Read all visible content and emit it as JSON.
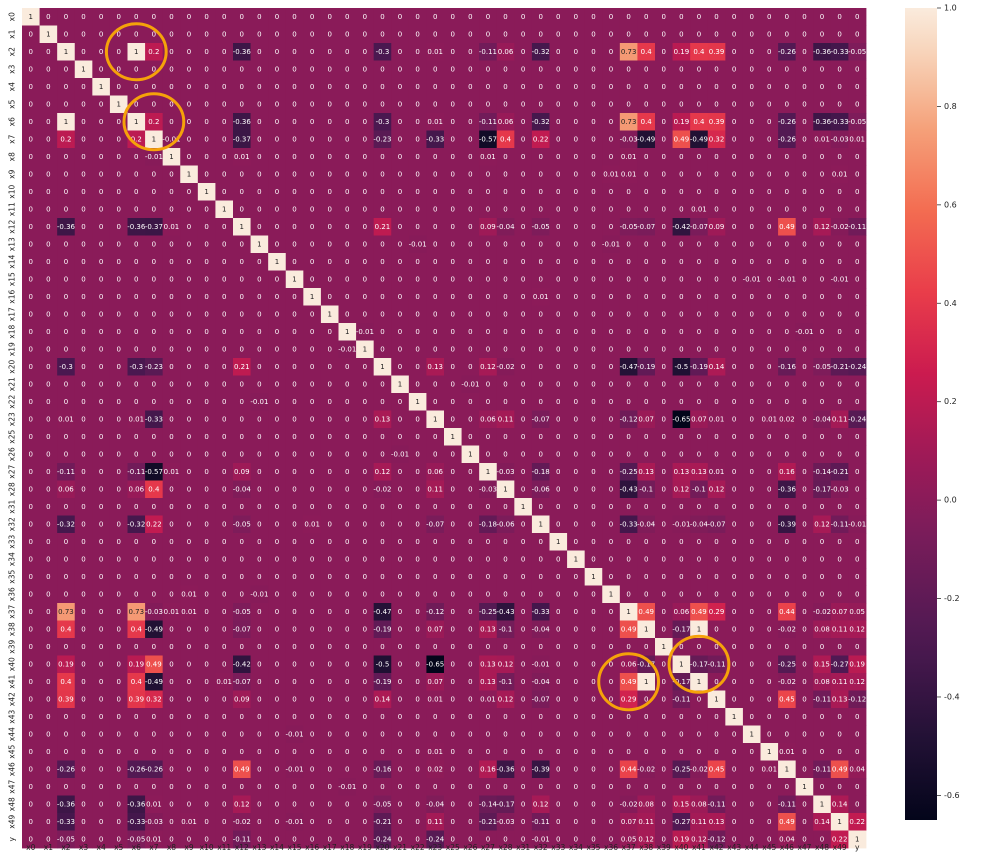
{
  "chart_data": {
    "type": "heatmap",
    "labels": [
      "x0",
      "x1",
      "x2",
      "x3",
      "x4",
      "x5",
      "x6",
      "x7",
      "x8",
      "x9",
      "x10",
      "x11",
      "x12",
      "x13",
      "x14",
      "x15",
      "x16",
      "x17",
      "x18",
      "x19",
      "x20",
      "x21",
      "x22",
      "x23",
      "x25",
      "x26",
      "x27",
      "x28",
      "x31",
      "x32",
      "x33",
      "x34",
      "x35",
      "x36",
      "x37",
      "x38",
      "x39",
      "x40",
      "x41",
      "x42",
      "x43",
      "x44",
      "x45",
      "x46",
      "x47",
      "x48",
      "x49",
      "y"
    ],
    "colorbar": {
      "min": -0.65,
      "max": 1.0,
      "ticks": [
        "1.0",
        "0.8",
        "0.6",
        "0.4",
        "0.2",
        "0.0",
        "-0.2",
        "-0.4",
        "-0.6"
      ],
      "tick_values": [
        1.0,
        0.8,
        0.6,
        0.4,
        0.2,
        0.0,
        -0.2,
        -0.4,
        -0.6
      ]
    },
    "colormap": "rocket",
    "default_off_diagonal": 0,
    "pairs": [
      [
        "x2",
        "x6",
        1
      ],
      [
        "x2",
        "x7",
        0.2
      ],
      [
        "x2",
        "x12",
        -0.36
      ],
      [
        "x2",
        "x20",
        -0.3
      ],
      [
        "x2",
        "x23",
        0.01
      ],
      [
        "x2",
        "x27",
        -0.11
      ],
      [
        "x2",
        "x28",
        0.06
      ],
      [
        "x2",
        "x32",
        -0.32
      ],
      [
        "x2",
        "x37",
        0.73
      ],
      [
        "x2",
        "x38",
        0.4
      ],
      [
        "x2",
        "x40",
        0.19
      ],
      [
        "x2",
        "x41",
        0.4
      ],
      [
        "x2",
        "x42",
        0.39
      ],
      [
        "x2",
        "x46",
        -0.26
      ],
      [
        "x2",
        "x48",
        -0.36
      ],
      [
        "x2",
        "x49",
        -0.33
      ],
      [
        "x2",
        "y",
        -0.05
      ],
      [
        "x6",
        "x7",
        0.2
      ],
      [
        "x6",
        "x12",
        -0.36
      ],
      [
        "x6",
        "x20",
        -0.3
      ],
      [
        "x6",
        "x23",
        0.01
      ],
      [
        "x6",
        "x27",
        -0.11
      ],
      [
        "x6",
        "x28",
        0.06
      ],
      [
        "x6",
        "x32",
        -0.32
      ],
      [
        "x6",
        "x37",
        0.73
      ],
      [
        "x6",
        "x38",
        0.4
      ],
      [
        "x6",
        "x40",
        0.19
      ],
      [
        "x6",
        "x41",
        0.4
      ],
      [
        "x6",
        "x42",
        0.39
      ],
      [
        "x6",
        "x46",
        -0.26
      ],
      [
        "x6",
        "x48",
        -0.36
      ],
      [
        "x6",
        "x49",
        -0.33
      ],
      [
        "x6",
        "y",
        -0.05
      ],
      [
        "x7",
        "x8",
        -0.01
      ],
      [
        "x7",
        "x12",
        -0.37
      ],
      [
        "x7",
        "x20",
        -0.23
      ],
      [
        "x7",
        "x23",
        -0.33
      ],
      [
        "x7",
        "x27",
        -0.57
      ],
      [
        "x7",
        "x28",
        0.4
      ],
      [
        "x7",
        "x32",
        0.22
      ],
      [
        "x7",
        "x37",
        -0.03
      ],
      [
        "x7",
        "x38",
        -0.49
      ],
      [
        "x7",
        "x40",
        0.49
      ],
      [
        "x7",
        "x41",
        -0.49
      ],
      [
        "x7",
        "x42",
        0.32
      ],
      [
        "x7",
        "x46",
        -0.26
      ],
      [
        "x7",
        "x48",
        0.01
      ],
      [
        "x7",
        "x49",
        -0.03
      ],
      [
        "x7",
        "y",
        0.01
      ],
      [
        "x8",
        "x12",
        0.01
      ],
      [
        "x8",
        "x27",
        0.01
      ],
      [
        "x8",
        "x37",
        0.01
      ],
      [
        "x9",
        "x36",
        0.01
      ],
      [
        "x9",
        "x37",
        0.01
      ],
      [
        "x9",
        "x49",
        0.01
      ],
      [
        "x11",
        "x41",
        0.01
      ],
      [
        "x12",
        "x20",
        0.21
      ],
      [
        "x12",
        "x27",
        0.09
      ],
      [
        "x12",
        "x28",
        -0.04
      ],
      [
        "x12",
        "x32",
        -0.05
      ],
      [
        "x12",
        "x37",
        -0.05
      ],
      [
        "x12",
        "x38",
        -0.07
      ],
      [
        "x12",
        "x40",
        -0.42
      ],
      [
        "x12",
        "x41",
        -0.07
      ],
      [
        "x12",
        "x42",
        0.09
      ],
      [
        "x12",
        "x46",
        0.49
      ],
      [
        "x12",
        "x48",
        0.12
      ],
      [
        "x12",
        "x49",
        -0.02
      ],
      [
        "x12",
        "y",
        -0.11
      ],
      [
        "x13",
        "x22",
        -0.01
      ],
      [
        "x13",
        "x36",
        -0.01
      ],
      [
        "x15",
        "x44",
        -0.01
      ],
      [
        "x15",
        "x46",
        -0.01
      ],
      [
        "x15",
        "x49",
        -0.01
      ],
      [
        "x16",
        "x32",
        0.01
      ],
      [
        "x18",
        "x19",
        -0.01
      ],
      [
        "x18",
        "x47",
        -0.01
      ],
      [
        "x20",
        "x23",
        0.13
      ],
      [
        "x20",
        "x27",
        0.12
      ],
      [
        "x20",
        "x28",
        -0.02
      ],
      [
        "x20",
        "x37",
        -0.47
      ],
      [
        "x20",
        "x38",
        -0.19
      ],
      [
        "x20",
        "x40",
        -0.5
      ],
      [
        "x20",
        "x41",
        -0.19
      ],
      [
        "x20",
        "x42",
        0.14
      ],
      [
        "x20",
        "x46",
        -0.16
      ],
      [
        "x20",
        "x48",
        -0.05
      ],
      [
        "x20",
        "x49",
        -0.21
      ],
      [
        "x20",
        "y",
        -0.24
      ],
      [
        "x21",
        "x26",
        -0.01
      ],
      [
        "x23",
        "x27",
        0.06
      ],
      [
        "x23",
        "x28",
        0.11
      ],
      [
        "x23",
        "x32",
        -0.07
      ],
      [
        "x23",
        "x37",
        -0.12
      ],
      [
        "x23",
        "x38",
        0.07
      ],
      [
        "x23",
        "x40",
        -0.65
      ],
      [
        "x23",
        "x41",
        0.07
      ],
      [
        "x23",
        "x42",
        0.01
      ],
      [
        "x23",
        "x45",
        0.01
      ],
      [
        "x23",
        "x46",
        0.02
      ],
      [
        "x23",
        "x48",
        -0.04
      ],
      [
        "x23",
        "x49",
        0.11
      ],
      [
        "x23",
        "y",
        -0.24
      ],
      [
        "x27",
        "x28",
        -0.03
      ],
      [
        "x27",
        "x32",
        -0.18
      ],
      [
        "x27",
        "x37",
        -0.25
      ],
      [
        "x27",
        "x38",
        0.13
      ],
      [
        "x27",
        "x40",
        0.13
      ],
      [
        "x27",
        "x41",
        0.13
      ],
      [
        "x27",
        "x42",
        0.01
      ],
      [
        "x27",
        "x46",
        0.16
      ],
      [
        "x27",
        "x48",
        -0.14
      ],
      [
        "x27",
        "x49",
        -0.21
      ],
      [
        "x28",
        "x32",
        -0.06
      ],
      [
        "x28",
        "x37",
        -0.43
      ],
      [
        "x28",
        "x38",
        -0.1
      ],
      [
        "x28",
        "x40",
        0.12
      ],
      [
        "x28",
        "x41",
        -0.1
      ],
      [
        "x28",
        "x42",
        0.12
      ],
      [
        "x28",
        "x46",
        -0.36
      ],
      [
        "x28",
        "x48",
        -0.17
      ],
      [
        "x28",
        "x49",
        -0.03
      ],
      [
        "x32",
        "x37",
        -0.33
      ],
      [
        "x32",
        "x38",
        -0.04
      ],
      [
        "x32",
        "x40",
        -0.01
      ],
      [
        "x32",
        "x41",
        -0.04
      ],
      [
        "x32",
        "x42",
        -0.07
      ],
      [
        "x32",
        "x46",
        -0.39
      ],
      [
        "x32",
        "x48",
        0.12
      ],
      [
        "x32",
        "x49",
        -0.11
      ],
      [
        "x32",
        "y",
        -0.01
      ],
      [
        "x37",
        "x38",
        0.49
      ],
      [
        "x37",
        "x40",
        0.06
      ],
      [
        "x37",
        "x41",
        0.49
      ],
      [
        "x37",
        "x42",
        0.29
      ],
      [
        "x37",
        "x46",
        0.44
      ],
      [
        "x37",
        "x48",
        -0.02
      ],
      [
        "x37",
        "x49",
        0.07
      ],
      [
        "x37",
        "y",
        0.05
      ],
      [
        "x38",
        "x40",
        -0.17
      ],
      [
        "x38",
        "x41",
        1
      ],
      [
        "x38",
        "x46",
        -0.02
      ],
      [
        "x38",
        "x48",
        0.08
      ],
      [
        "x38",
        "x49",
        0.11
      ],
      [
        "x38",
        "y",
        0.12
      ],
      [
        "x40",
        "x41",
        -0.17
      ],
      [
        "x40",
        "x42",
        -0.11
      ],
      [
        "x40",
        "x46",
        -0.25
      ],
      [
        "x40",
        "x48",
        0.15
      ],
      [
        "x40",
        "x49",
        -0.27
      ],
      [
        "x40",
        "y",
        0.19
      ],
      [
        "x41",
        "x46",
        -0.02
      ],
      [
        "x41",
        "x48",
        0.08
      ],
      [
        "x41",
        "x49",
        0.11
      ],
      [
        "x41",
        "y",
        0.12
      ],
      [
        "x42",
        "x46",
        0.45
      ],
      [
        "x42",
        "x48",
        -0.11
      ],
      [
        "x42",
        "x49",
        0.13
      ],
      [
        "x42",
        "y",
        -0.12
      ],
      [
        "x45",
        "x46",
        0.01
      ],
      [
        "x46",
        "x48",
        -0.11
      ],
      [
        "x46",
        "x49",
        0.49
      ],
      [
        "x46",
        "y",
        0.04
      ],
      [
        "x48",
        "x49",
        0.14
      ],
      [
        "x49",
        "y",
        0.22
      ]
    ],
    "annotations": [
      {
        "type": "circle",
        "around": [
          "x6",
          "x7"
        ],
        "color": "#f5a20a"
      },
      {
        "type": "circle",
        "around": [
          "x2",
          "x6"
        ],
        "color": "#f5a20a"
      },
      {
        "type": "circle",
        "around": [
          "x40",
          "x41"
        ],
        "color": "#f5a20a"
      },
      {
        "type": "circle",
        "around": [
          "x41",
          "x37"
        ],
        "color": "#f5a20a"
      }
    ]
  }
}
